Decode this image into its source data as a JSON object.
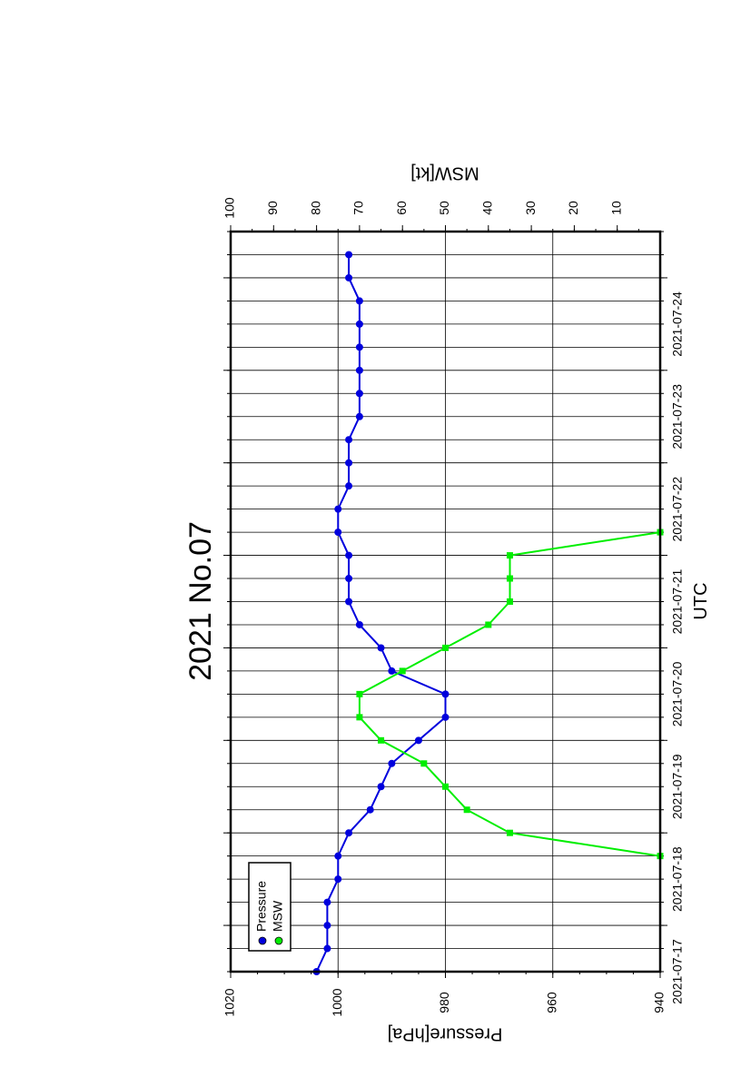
{
  "chart_data": {
    "type": "line",
    "title": "2021 No.07",
    "xlabel": "UTC",
    "ylabel_left": "Pressure[hPa]",
    "ylabel_right": "MSW[kt]",
    "x_tick_labels": [
      "2021-07-17",
      "2021-07-18",
      "2021-07-19",
      "2021-07-20",
      "2021-07-21",
      "2021-07-22",
      "2021-07-23",
      "2021-07-24"
    ],
    "x_tick_values": [
      "2021-07-17T00",
      "2021-07-18T00",
      "2021-07-19T00",
      "2021-07-20T00",
      "2021-07-21T00",
      "2021-07-22T00",
      "2021-07-23T00",
      "2021-07-24T00"
    ],
    "xlim": [
      "2021-07-16T12",
      "2021-07-24T12"
    ],
    "ylim_left": [
      940,
      1020
    ],
    "yticks_left": [
      940,
      960,
      980,
      1000,
      1020
    ],
    "ylim_right": [
      0,
      100
    ],
    "yticks_right": [
      10,
      20,
      30,
      40,
      50,
      60,
      70,
      80,
      90,
      100
    ],
    "grid": true,
    "legend": "top-left",
    "series": [
      {
        "name": "Pressure",
        "axis": "left",
        "color": "#0000dd",
        "marker": "circle",
        "x": [
          "2021-07-16T12",
          "2021-07-16T18",
          "2021-07-17T00",
          "2021-07-17T06",
          "2021-07-17T12",
          "2021-07-17T18",
          "2021-07-18T00",
          "2021-07-18T06",
          "2021-07-18T12",
          "2021-07-18T18",
          "2021-07-19T00",
          "2021-07-19T06",
          "2021-07-19T12",
          "2021-07-19T18",
          "2021-07-20T00",
          "2021-07-20T06",
          "2021-07-20T12",
          "2021-07-20T18",
          "2021-07-21T00",
          "2021-07-21T06",
          "2021-07-21T12",
          "2021-07-21T18",
          "2021-07-22T00",
          "2021-07-22T06",
          "2021-07-22T12",
          "2021-07-22T18",
          "2021-07-23T00",
          "2021-07-23T06",
          "2021-07-23T12",
          "2021-07-23T18",
          "2021-07-24T00",
          "2021-07-24T06"
        ],
        "values": [
          1004,
          1002,
          1002,
          1002,
          1000,
          1000,
          998,
          994,
          992,
          990,
          985,
          980,
          980,
          990,
          992,
          996,
          998,
          998,
          998,
          1000,
          1000,
          998,
          998,
          998,
          996,
          996,
          996,
          996,
          996,
          996,
          998,
          998
        ]
      },
      {
        "name": "MSW",
        "axis": "right",
        "color": "#00ee00",
        "marker": "square",
        "x": [
          "2021-07-17T18",
          "2021-07-18T00",
          "2021-07-18T06",
          "2021-07-18T12",
          "2021-07-18T18",
          "2021-07-19T00",
          "2021-07-19T06",
          "2021-07-19T12",
          "2021-07-19T18",
          "2021-07-20T00",
          "2021-07-20T06",
          "2021-07-20T12",
          "2021-07-20T18",
          "2021-07-21T00",
          "2021-07-21T06"
        ],
        "values": [
          0,
          35,
          45,
          50,
          55,
          65,
          70,
          70,
          60,
          50,
          40,
          35,
          35,
          35,
          0
        ]
      }
    ]
  }
}
